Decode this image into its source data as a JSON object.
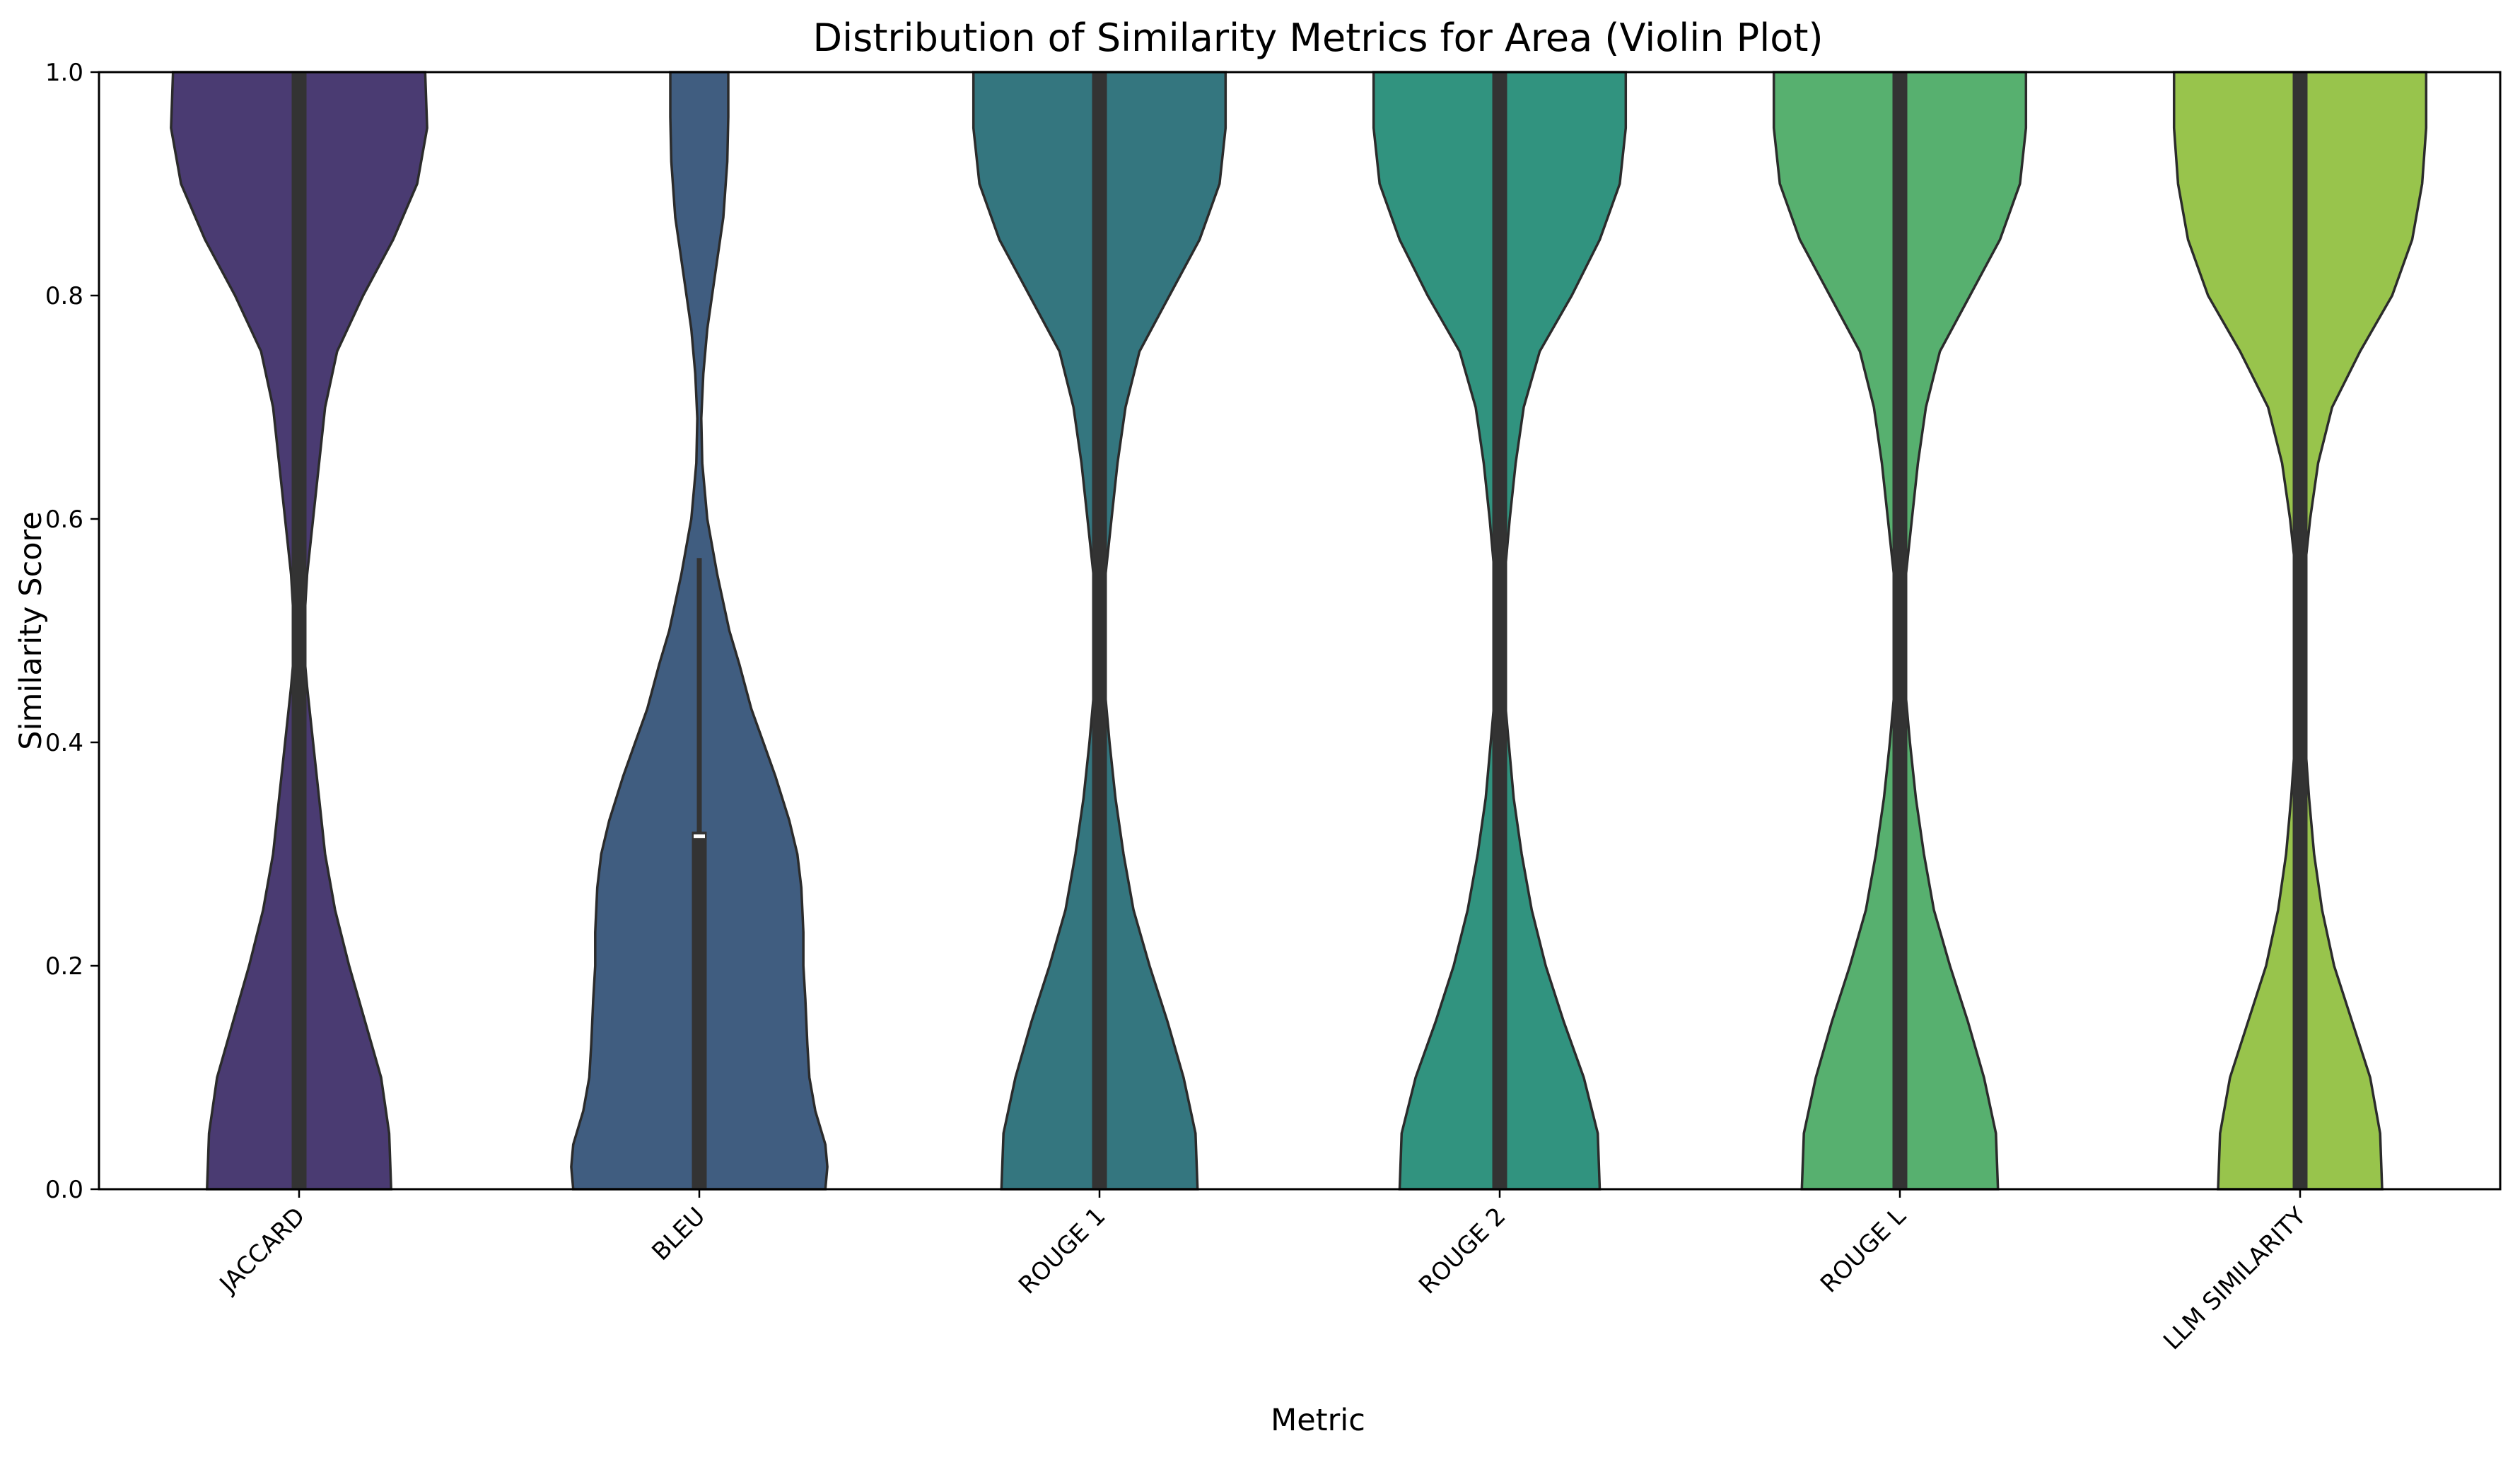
{
  "chart_data": {
    "type": "violin",
    "title": "Distribution of Similarity Metrics for Area (Violin Plot)",
    "xlabel": "Metric",
    "ylabel": "Similarity Score",
    "ylim": [
      0.0,
      1.0
    ],
    "yticks": [
      0.0,
      0.2,
      0.4,
      0.6,
      0.8,
      1.0
    ],
    "ytick_labels": [
      "0.0",
      "0.2",
      "0.4",
      "0.6",
      "0.8",
      "1.0"
    ],
    "categories": [
      "JACCARD",
      "BLEU",
      "ROUGE 1",
      "ROUGE 2",
      "ROUGE L",
      "LLM SIMILARITY"
    ],
    "grid": false,
    "legend": "none",
    "series": [
      {
        "category": "JACCARD",
        "color": "#4a3b72",
        "q1": 0.0,
        "median": 1.0,
        "q3": 1.0,
        "whisker_low": 0.0,
        "whisker_high": 1.0,
        "density": [
          [
            0.0,
            0.46
          ],
          [
            0.05,
            0.45
          ],
          [
            0.1,
            0.41
          ],
          [
            0.15,
            0.33
          ],
          [
            0.2,
            0.25
          ],
          [
            0.25,
            0.18
          ],
          [
            0.3,
            0.13
          ],
          [
            0.35,
            0.1
          ],
          [
            0.4,
            0.07
          ],
          [
            0.45,
            0.04
          ],
          [
            0.49,
            0.02
          ],
          [
            0.55,
            0.04
          ],
          [
            0.6,
            0.07
          ],
          [
            0.65,
            0.1
          ],
          [
            0.7,
            0.13
          ],
          [
            0.75,
            0.19
          ],
          [
            0.8,
            0.32
          ],
          [
            0.85,
            0.47
          ],
          [
            0.9,
            0.59
          ],
          [
            0.95,
            0.64
          ],
          [
            1.0,
            0.63
          ]
        ]
      },
      {
        "category": "BLEU",
        "color": "#405d80",
        "q1": 0.0,
        "median": 0.316,
        "q3": 0.32,
        "whisker_low": 0.0,
        "whisker_high": 0.565,
        "density": [
          [
            0.0,
            0.63
          ],
          [
            0.02,
            0.64
          ],
          [
            0.04,
            0.63
          ],
          [
            0.07,
            0.58
          ],
          [
            0.1,
            0.55
          ],
          [
            0.13,
            0.54
          ],
          [
            0.17,
            0.53
          ],
          [
            0.2,
            0.52
          ],
          [
            0.23,
            0.52
          ],
          [
            0.27,
            0.51
          ],
          [
            0.3,
            0.49
          ],
          [
            0.33,
            0.45
          ],
          [
            0.37,
            0.38
          ],
          [
            0.4,
            0.32
          ],
          [
            0.43,
            0.26
          ],
          [
            0.47,
            0.2
          ],
          [
            0.5,
            0.15
          ],
          [
            0.55,
            0.09
          ],
          [
            0.6,
            0.04
          ],
          [
            0.65,
            0.015
          ],
          [
            0.69,
            0.01
          ],
          [
            0.73,
            0.02
          ],
          [
            0.77,
            0.04
          ],
          [
            0.82,
            0.08
          ],
          [
            0.87,
            0.12
          ],
          [
            0.92,
            0.14
          ],
          [
            0.96,
            0.145
          ],
          [
            1.0,
            0.145
          ]
        ]
      },
      {
        "category": "ROUGE 1",
        "color": "#34767f",
        "q1": 0.0,
        "median": 1.0,
        "q3": 1.0,
        "whisker_low": 0.0,
        "whisker_high": 1.0,
        "density": [
          [
            0.0,
            0.49
          ],
          [
            0.05,
            0.48
          ],
          [
            0.1,
            0.42
          ],
          [
            0.15,
            0.34
          ],
          [
            0.2,
            0.25
          ],
          [
            0.25,
            0.17
          ],
          [
            0.3,
            0.12
          ],
          [
            0.35,
            0.08
          ],
          [
            0.4,
            0.05
          ],
          [
            0.45,
            0.025
          ],
          [
            0.49,
            0.015
          ],
          [
            0.55,
            0.03
          ],
          [
            0.6,
            0.06
          ],
          [
            0.65,
            0.09
          ],
          [
            0.7,
            0.13
          ],
          [
            0.75,
            0.2
          ],
          [
            0.8,
            0.35
          ],
          [
            0.85,
            0.5
          ],
          [
            0.9,
            0.6
          ],
          [
            0.95,
            0.63
          ],
          [
            1.0,
            0.63
          ]
        ]
      },
      {
        "category": "ROUGE 2",
        "color": "#31937f",
        "q1": 0.0,
        "median": 1.0,
        "q3": 1.0,
        "whisker_low": 0.0,
        "whisker_high": 1.0,
        "density": [
          [
            0.0,
            0.5
          ],
          [
            0.05,
            0.49
          ],
          [
            0.1,
            0.42
          ],
          [
            0.15,
            0.32
          ],
          [
            0.2,
            0.23
          ],
          [
            0.25,
            0.16
          ],
          [
            0.3,
            0.11
          ],
          [
            0.35,
            0.07
          ],
          [
            0.4,
            0.045
          ],
          [
            0.45,
            0.02
          ],
          [
            0.49,
            0.01
          ],
          [
            0.55,
            0.025
          ],
          [
            0.6,
            0.05
          ],
          [
            0.65,
            0.08
          ],
          [
            0.7,
            0.12
          ],
          [
            0.75,
            0.2
          ],
          [
            0.8,
            0.36
          ],
          [
            0.85,
            0.5
          ],
          [
            0.9,
            0.6
          ],
          [
            0.95,
            0.63
          ],
          [
            1.0,
            0.63
          ]
        ]
      },
      {
        "category": "ROUGE L",
        "color": "#57b06f",
        "q1": 0.0,
        "median": 1.0,
        "q3": 1.0,
        "whisker_low": 0.0,
        "whisker_high": 1.0,
        "density": [
          [
            0.0,
            0.49
          ],
          [
            0.05,
            0.48
          ],
          [
            0.1,
            0.42
          ],
          [
            0.15,
            0.34
          ],
          [
            0.2,
            0.25
          ],
          [
            0.25,
            0.17
          ],
          [
            0.3,
            0.12
          ],
          [
            0.35,
            0.08
          ],
          [
            0.4,
            0.05
          ],
          [
            0.45,
            0.025
          ],
          [
            0.49,
            0.015
          ],
          [
            0.55,
            0.03
          ],
          [
            0.6,
            0.06
          ],
          [
            0.65,
            0.09
          ],
          [
            0.7,
            0.13
          ],
          [
            0.75,
            0.2
          ],
          [
            0.8,
            0.35
          ],
          [
            0.85,
            0.5
          ],
          [
            0.9,
            0.6
          ],
          [
            0.95,
            0.63
          ],
          [
            1.0,
            0.63
          ]
        ]
      },
      {
        "category": "LLM SIMILARITY",
        "color": "#98c44c",
        "q1": 0.0,
        "median": 1.0,
        "q3": 1.0,
        "whisker_low": 0.0,
        "whisker_high": 1.0,
        "density": [
          [
            0.0,
            0.41
          ],
          [
            0.05,
            0.4
          ],
          [
            0.1,
            0.35
          ],
          [
            0.15,
            0.26
          ],
          [
            0.2,
            0.17
          ],
          [
            0.25,
            0.11
          ],
          [
            0.3,
            0.07
          ],
          [
            0.35,
            0.045
          ],
          [
            0.4,
            0.025
          ],
          [
            0.45,
            0.01
          ],
          [
            0.49,
            0.005
          ],
          [
            0.55,
            0.02
          ],
          [
            0.6,
            0.05
          ],
          [
            0.65,
            0.09
          ],
          [
            0.7,
            0.16
          ],
          [
            0.75,
            0.3
          ],
          [
            0.8,
            0.46
          ],
          [
            0.85,
            0.56
          ],
          [
            0.9,
            0.61
          ],
          [
            0.95,
            0.63
          ],
          [
            1.0,
            0.63
          ]
        ]
      }
    ]
  }
}
